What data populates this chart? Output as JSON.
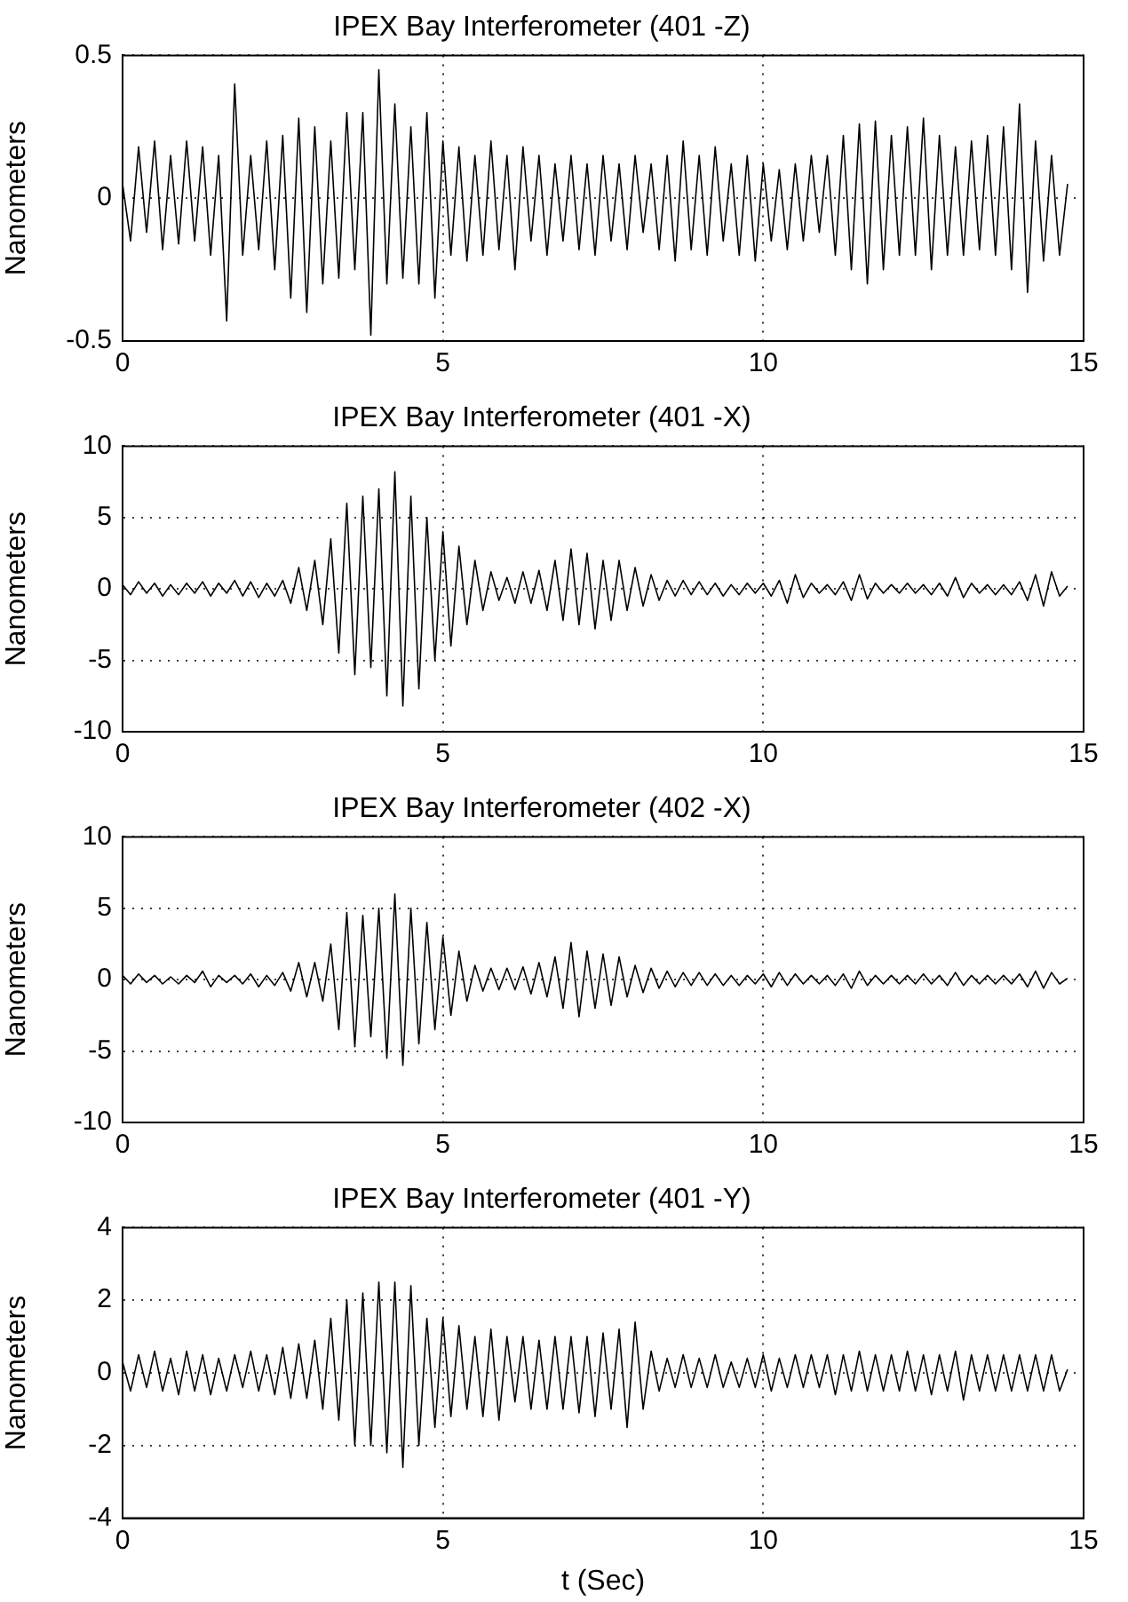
{
  "chart_data": [
    {
      "type": "line",
      "title": "IPEX Bay Interferometer (401 -Z)",
      "ylabel": "Nanometers",
      "xlim": [
        0,
        15
      ],
      "xticks": [
        0,
        5,
        10,
        15
      ],
      "ylim": [
        -0.5,
        0.5
      ],
      "yticks": [
        -0.5,
        0,
        0.5
      ],
      "grid": true,
      "x": [
        0,
        0.125,
        0.25,
        0.375,
        0.5,
        0.625,
        0.75,
        0.875,
        1,
        1.125,
        1.25,
        1.375,
        1.5,
        1.625,
        1.75,
        1.875,
        2,
        2.125,
        2.25,
        2.375,
        2.5,
        2.625,
        2.75,
        2.875,
        3,
        3.125,
        3.25,
        3.375,
        3.5,
        3.625,
        3.75,
        3.875,
        4,
        4.125,
        4.25,
        4.375,
        4.5,
        4.625,
        4.75,
        4.875,
        5,
        5.125,
        5.25,
        5.375,
        5.5,
        5.625,
        5.75,
        5.875,
        6,
        6.125,
        6.25,
        6.375,
        6.5,
        6.625,
        6.75,
        6.875,
        7,
        7.125,
        7.25,
        7.375,
        7.5,
        7.625,
        7.75,
        7.875,
        8,
        8.125,
        8.25,
        8.375,
        8.5,
        8.625,
        8.75,
        8.875,
        9,
        9.125,
        9.25,
        9.375,
        9.5,
        9.625,
        9.75,
        9.875,
        10,
        10.125,
        10.25,
        10.375,
        10.5,
        10.625,
        10.75,
        10.875,
        11,
        11.125,
        11.25,
        11.375,
        11.5,
        11.625,
        11.75,
        11.875,
        12,
        12.125,
        12.25,
        12.375,
        12.5,
        12.625,
        12.75,
        12.875,
        13,
        13.125,
        13.25,
        13.375,
        13.5,
        13.625,
        13.75,
        13.875,
        14,
        14.125,
        14.25,
        14.375,
        14.5,
        14.625,
        14.75
      ],
      "series": [
        {
          "color": "#000000",
          "values": [
            0.05,
            -0.15,
            0.18,
            -0.12,
            0.2,
            -0.18,
            0.15,
            -0.16,
            0.2,
            -0.15,
            0.18,
            -0.2,
            0.15,
            -0.43,
            0.4,
            -0.2,
            0.15,
            -0.18,
            0.2,
            -0.25,
            0.22,
            -0.35,
            0.28,
            -0.4,
            0.25,
            -0.3,
            0.2,
            -0.28,
            0.3,
            -0.25,
            0.3,
            -0.48,
            0.45,
            -0.3,
            0.33,
            -0.28,
            0.25,
            -0.3,
            0.3,
            -0.35,
            0.2,
            -0.2,
            0.18,
            -0.22,
            0.15,
            -0.2,
            0.2,
            -0.18,
            0.15,
            -0.25,
            0.18,
            -0.15,
            0.15,
            -0.2,
            0.12,
            -0.15,
            0.15,
            -0.18,
            0.12,
            -0.2,
            0.15,
            -0.15,
            0.12,
            -0.18,
            0.15,
            -0.12,
            0.12,
            -0.18,
            0.15,
            -0.22,
            0.2,
            -0.18,
            0.15,
            -0.2,
            0.18,
            -0.15,
            0.12,
            -0.2,
            0.15,
            -0.22,
            0.12,
            -0.15,
            0.1,
            -0.18,
            0.12,
            -0.15,
            0.15,
            -0.12,
            0.15,
            -0.2,
            0.22,
            -0.25,
            0.26,
            -0.3,
            0.27,
            -0.25,
            0.22,
            -0.2,
            0.25,
            -0.2,
            0.28,
            -0.25,
            0.22,
            -0.2,
            0.18,
            -0.2,
            0.2,
            -0.18,
            0.22,
            -0.2,
            0.25,
            -0.25,
            0.33,
            -0.33,
            0.2,
            -0.22,
            0.15,
            -0.2,
            0.05
          ]
        }
      ]
    },
    {
      "type": "line",
      "title": "IPEX Bay Interferometer (401 -X)",
      "ylabel": "Nanometers",
      "xlim": [
        0,
        15
      ],
      "xticks": [
        0,
        5,
        10,
        15
      ],
      "ylim": [
        -10,
        10
      ],
      "yticks": [
        -10,
        -5,
        0,
        5,
        10
      ],
      "grid": true,
      "x": [
        0,
        0.125,
        0.25,
        0.375,
        0.5,
        0.625,
        0.75,
        0.875,
        1,
        1.125,
        1.25,
        1.375,
        1.5,
        1.625,
        1.75,
        1.875,
        2,
        2.125,
        2.25,
        2.375,
        2.5,
        2.625,
        2.75,
        2.875,
        3,
        3.125,
        3.25,
        3.375,
        3.5,
        3.625,
        3.75,
        3.875,
        4,
        4.125,
        4.25,
        4.375,
        4.5,
        4.625,
        4.75,
        4.875,
        5,
        5.125,
        5.25,
        5.375,
        5.5,
        5.625,
        5.75,
        5.875,
        6,
        6.125,
        6.25,
        6.375,
        6.5,
        6.625,
        6.75,
        6.875,
        7,
        7.125,
        7.25,
        7.375,
        7.5,
        7.625,
        7.75,
        7.875,
        8,
        8.125,
        8.25,
        8.375,
        8.5,
        8.625,
        8.75,
        8.875,
        9,
        9.125,
        9.25,
        9.375,
        9.5,
        9.625,
        9.75,
        9.875,
        10,
        10.125,
        10.25,
        10.375,
        10.5,
        10.625,
        10.75,
        10.875,
        11,
        11.125,
        11.25,
        11.375,
        11.5,
        11.625,
        11.75,
        11.875,
        12,
        12.125,
        12.25,
        12.375,
        12.5,
        12.625,
        12.75,
        12.875,
        13,
        13.125,
        13.25,
        13.375,
        13.5,
        13.625,
        13.75,
        13.875,
        14,
        14.125,
        14.25,
        14.375,
        14.5,
        14.625,
        14.75
      ],
      "series": [
        {
          "color": "#000000",
          "values": [
            0.3,
            -0.4,
            0.5,
            -0.3,
            0.4,
            -0.5,
            0.3,
            -0.4,
            0.4,
            -0.3,
            0.5,
            -0.5,
            0.4,
            -0.3,
            0.6,
            -0.5,
            0.5,
            -0.6,
            0.4,
            -0.5,
            0.6,
            -1.0,
            1.5,
            -1.5,
            2.0,
            -2.5,
            3.5,
            -4.5,
            6.0,
            -6.0,
            6.5,
            -5.5,
            7.0,
            -7.5,
            8.2,
            -8.2,
            6.5,
            -7.0,
            5.0,
            -5.0,
            4.0,
            -4.0,
            3.0,
            -2.5,
            2.0,
            -1.5,
            1.2,
            -0.8,
            0.8,
            -1.0,
            1.2,
            -1.0,
            1.3,
            -1.5,
            2.0,
            -2.2,
            2.8,
            -2.5,
            2.5,
            -2.8,
            2.0,
            -2.2,
            2.0,
            -1.5,
            1.5,
            -1.2,
            1.0,
            -0.8,
            0.6,
            -0.5,
            0.6,
            -0.4,
            0.5,
            -0.4,
            0.4,
            -0.5,
            0.3,
            -0.4,
            0.4,
            -0.3,
            0.4,
            -0.5,
            0.6,
            -1.0,
            1.0,
            -0.6,
            0.4,
            -0.3,
            0.3,
            -0.4,
            0.5,
            -0.8,
            1.0,
            -0.7,
            0.4,
            -0.3,
            0.3,
            -0.3,
            0.4,
            -0.3,
            0.3,
            -0.4,
            0.4,
            -0.5,
            0.8,
            -0.6,
            0.4,
            -0.3,
            0.3,
            -0.4,
            0.3,
            -0.4,
            0.5,
            -0.8,
            1.0,
            -1.2,
            1.2,
            -0.5,
            0.2
          ]
        }
      ]
    },
    {
      "type": "line",
      "title": "IPEX Bay Interferometer (402 -X)",
      "ylabel": "Nanometers",
      "xlim": [
        0,
        15
      ],
      "xticks": [
        0,
        5,
        10,
        15
      ],
      "ylim": [
        -10,
        10
      ],
      "yticks": [
        -10,
        -5,
        0,
        5,
        10
      ],
      "grid": true,
      "x": [
        0,
        0.125,
        0.25,
        0.375,
        0.5,
        0.625,
        0.75,
        0.875,
        1,
        1.125,
        1.25,
        1.375,
        1.5,
        1.625,
        1.75,
        1.875,
        2,
        2.125,
        2.25,
        2.375,
        2.5,
        2.625,
        2.75,
        2.875,
        3,
        3.125,
        3.25,
        3.375,
        3.5,
        3.625,
        3.75,
        3.875,
        4,
        4.125,
        4.25,
        4.375,
        4.5,
        4.625,
        4.75,
        4.875,
        5,
        5.125,
        5.25,
        5.375,
        5.5,
        5.625,
        5.75,
        5.875,
        6,
        6.125,
        6.25,
        6.375,
        6.5,
        6.625,
        6.75,
        6.875,
        7,
        7.125,
        7.25,
        7.375,
        7.5,
        7.625,
        7.75,
        7.875,
        8,
        8.125,
        8.25,
        8.375,
        8.5,
        8.625,
        8.75,
        8.875,
        9,
        9.125,
        9.25,
        9.375,
        9.5,
        9.625,
        9.75,
        9.875,
        10,
        10.125,
        10.25,
        10.375,
        10.5,
        10.625,
        10.75,
        10.875,
        11,
        11.125,
        11.25,
        11.375,
        11.5,
        11.625,
        11.75,
        11.875,
        12,
        12.125,
        12.25,
        12.375,
        12.5,
        12.625,
        12.75,
        12.875,
        13,
        13.125,
        13.25,
        13.375,
        13.5,
        13.625,
        13.75,
        13.875,
        14,
        14.125,
        14.25,
        14.375,
        14.5,
        14.625,
        14.75
      ],
      "series": [
        {
          "color": "#000000",
          "values": [
            0.3,
            -0.3,
            0.4,
            -0.2,
            0.3,
            -0.3,
            0.2,
            -0.3,
            0.3,
            -0.2,
            0.6,
            -0.5,
            0.3,
            -0.2,
            0.3,
            -0.3,
            0.4,
            -0.5,
            0.3,
            -0.4,
            0.5,
            -0.8,
            1.2,
            -1.2,
            1.2,
            -1.5,
            2.5,
            -3.5,
            4.7,
            -4.7,
            4.5,
            -4.0,
            5.0,
            -5.5,
            6.0,
            -6.0,
            5.0,
            -4.5,
            4.0,
            -3.5,
            3.0,
            -2.5,
            2.0,
            -1.5,
            1.0,
            -0.8,
            0.8,
            -0.7,
            0.8,
            -0.7,
            0.9,
            -1.0,
            1.2,
            -1.2,
            1.6,
            -2.0,
            2.6,
            -2.6,
            2.0,
            -2.0,
            1.8,
            -1.8,
            1.6,
            -1.2,
            1.0,
            -0.9,
            0.8,
            -0.6,
            0.6,
            -0.5,
            0.5,
            -0.4,
            0.5,
            -0.4,
            0.4,
            -0.4,
            0.3,
            -0.4,
            0.3,
            -0.3,
            0.4,
            -0.5,
            0.5,
            -0.4,
            0.4,
            -0.3,
            0.3,
            -0.3,
            0.3,
            -0.4,
            0.4,
            -0.6,
            0.6,
            -0.4,
            0.3,
            -0.3,
            0.3,
            -0.3,
            0.3,
            -0.3,
            0.4,
            -0.3,
            0.3,
            -0.4,
            0.5,
            -0.4,
            0.3,
            -0.3,
            0.3,
            -0.3,
            0.3,
            -0.3,
            0.4,
            -0.5,
            0.6,
            -0.6,
            0.5,
            -0.3,
            0.1
          ]
        }
      ]
    },
    {
      "type": "line",
      "title": "IPEX Bay Interferometer (401 -Y)",
      "xlabel": "t (Sec)",
      "ylabel": "Nanometers",
      "xlim": [
        0,
        15
      ],
      "xticks": [
        0,
        5,
        10,
        15
      ],
      "ylim": [
        -4,
        4
      ],
      "yticks": [
        -4,
        -2,
        0,
        2,
        4
      ],
      "grid": true,
      "x": [
        0,
        0.125,
        0.25,
        0.375,
        0.5,
        0.625,
        0.75,
        0.875,
        1,
        1.125,
        1.25,
        1.375,
        1.5,
        1.625,
        1.75,
        1.875,
        2,
        2.125,
        2.25,
        2.375,
        2.5,
        2.625,
        2.75,
        2.875,
        3,
        3.125,
        3.25,
        3.375,
        3.5,
        3.625,
        3.75,
        3.875,
        4,
        4.125,
        4.25,
        4.375,
        4.5,
        4.625,
        4.75,
        4.875,
        5,
        5.125,
        5.25,
        5.375,
        5.5,
        5.625,
        5.75,
        5.875,
        6,
        6.125,
        6.25,
        6.375,
        6.5,
        6.625,
        6.75,
        6.875,
        7,
        7.125,
        7.25,
        7.375,
        7.5,
        7.625,
        7.75,
        7.875,
        8,
        8.125,
        8.25,
        8.375,
        8.5,
        8.625,
        8.75,
        8.875,
        9,
        9.125,
        9.25,
        9.375,
        9.5,
        9.625,
        9.75,
        9.875,
        10,
        10.125,
        10.25,
        10.375,
        10.5,
        10.625,
        10.75,
        10.875,
        11,
        11.125,
        11.25,
        11.375,
        11.5,
        11.625,
        11.75,
        11.875,
        12,
        12.125,
        12.25,
        12.375,
        12.5,
        12.625,
        12.75,
        12.875,
        13,
        13.125,
        13.25,
        13.375,
        13.5,
        13.625,
        13.75,
        13.875,
        14,
        14.125,
        14.25,
        14.375,
        14.5,
        14.625,
        14.75
      ],
      "series": [
        {
          "color": "#000000",
          "values": [
            0.3,
            -0.5,
            0.5,
            -0.4,
            0.6,
            -0.5,
            0.4,
            -0.6,
            0.6,
            -0.5,
            0.5,
            -0.6,
            0.4,
            -0.5,
            0.5,
            -0.4,
            0.6,
            -0.5,
            0.5,
            -0.6,
            0.7,
            -0.7,
            0.8,
            -0.7,
            0.9,
            -1.0,
            1.5,
            -1.3,
            2.0,
            -2.0,
            2.2,
            -2.0,
            2.5,
            -2.2,
            2.5,
            -2.6,
            2.4,
            -2.0,
            1.5,
            -1.5,
            1.5,
            -1.2,
            1.3,
            -1.0,
            1.0,
            -1.2,
            1.2,
            -1.3,
            1.0,
            -0.8,
            1.0,
            -1.0,
            0.9,
            -1.0,
            1.0,
            -1.0,
            1.0,
            -1.1,
            1.0,
            -1.2,
            1.1,
            -1.0,
            1.2,
            -1.5,
            1.4,
            -1.0,
            0.6,
            -0.5,
            0.4,
            -0.4,
            0.5,
            -0.4,
            0.4,
            -0.4,
            0.5,
            -0.4,
            0.3,
            -0.4,
            0.4,
            -0.4,
            0.5,
            -0.5,
            0.4,
            -0.4,
            0.5,
            -0.4,
            0.5,
            -0.4,
            0.5,
            -0.6,
            0.5,
            -0.5,
            0.6,
            -0.5,
            0.5,
            -0.5,
            0.5,
            -0.5,
            0.6,
            -0.5,
            0.5,
            -0.6,
            0.5,
            -0.5,
            0.6,
            -0.75,
            0.5,
            -0.5,
            0.5,
            -0.5,
            0.5,
            -0.5,
            0.5,
            -0.5,
            0.5,
            -0.5,
            0.5,
            -0.5,
            0.1
          ]
        }
      ]
    }
  ]
}
